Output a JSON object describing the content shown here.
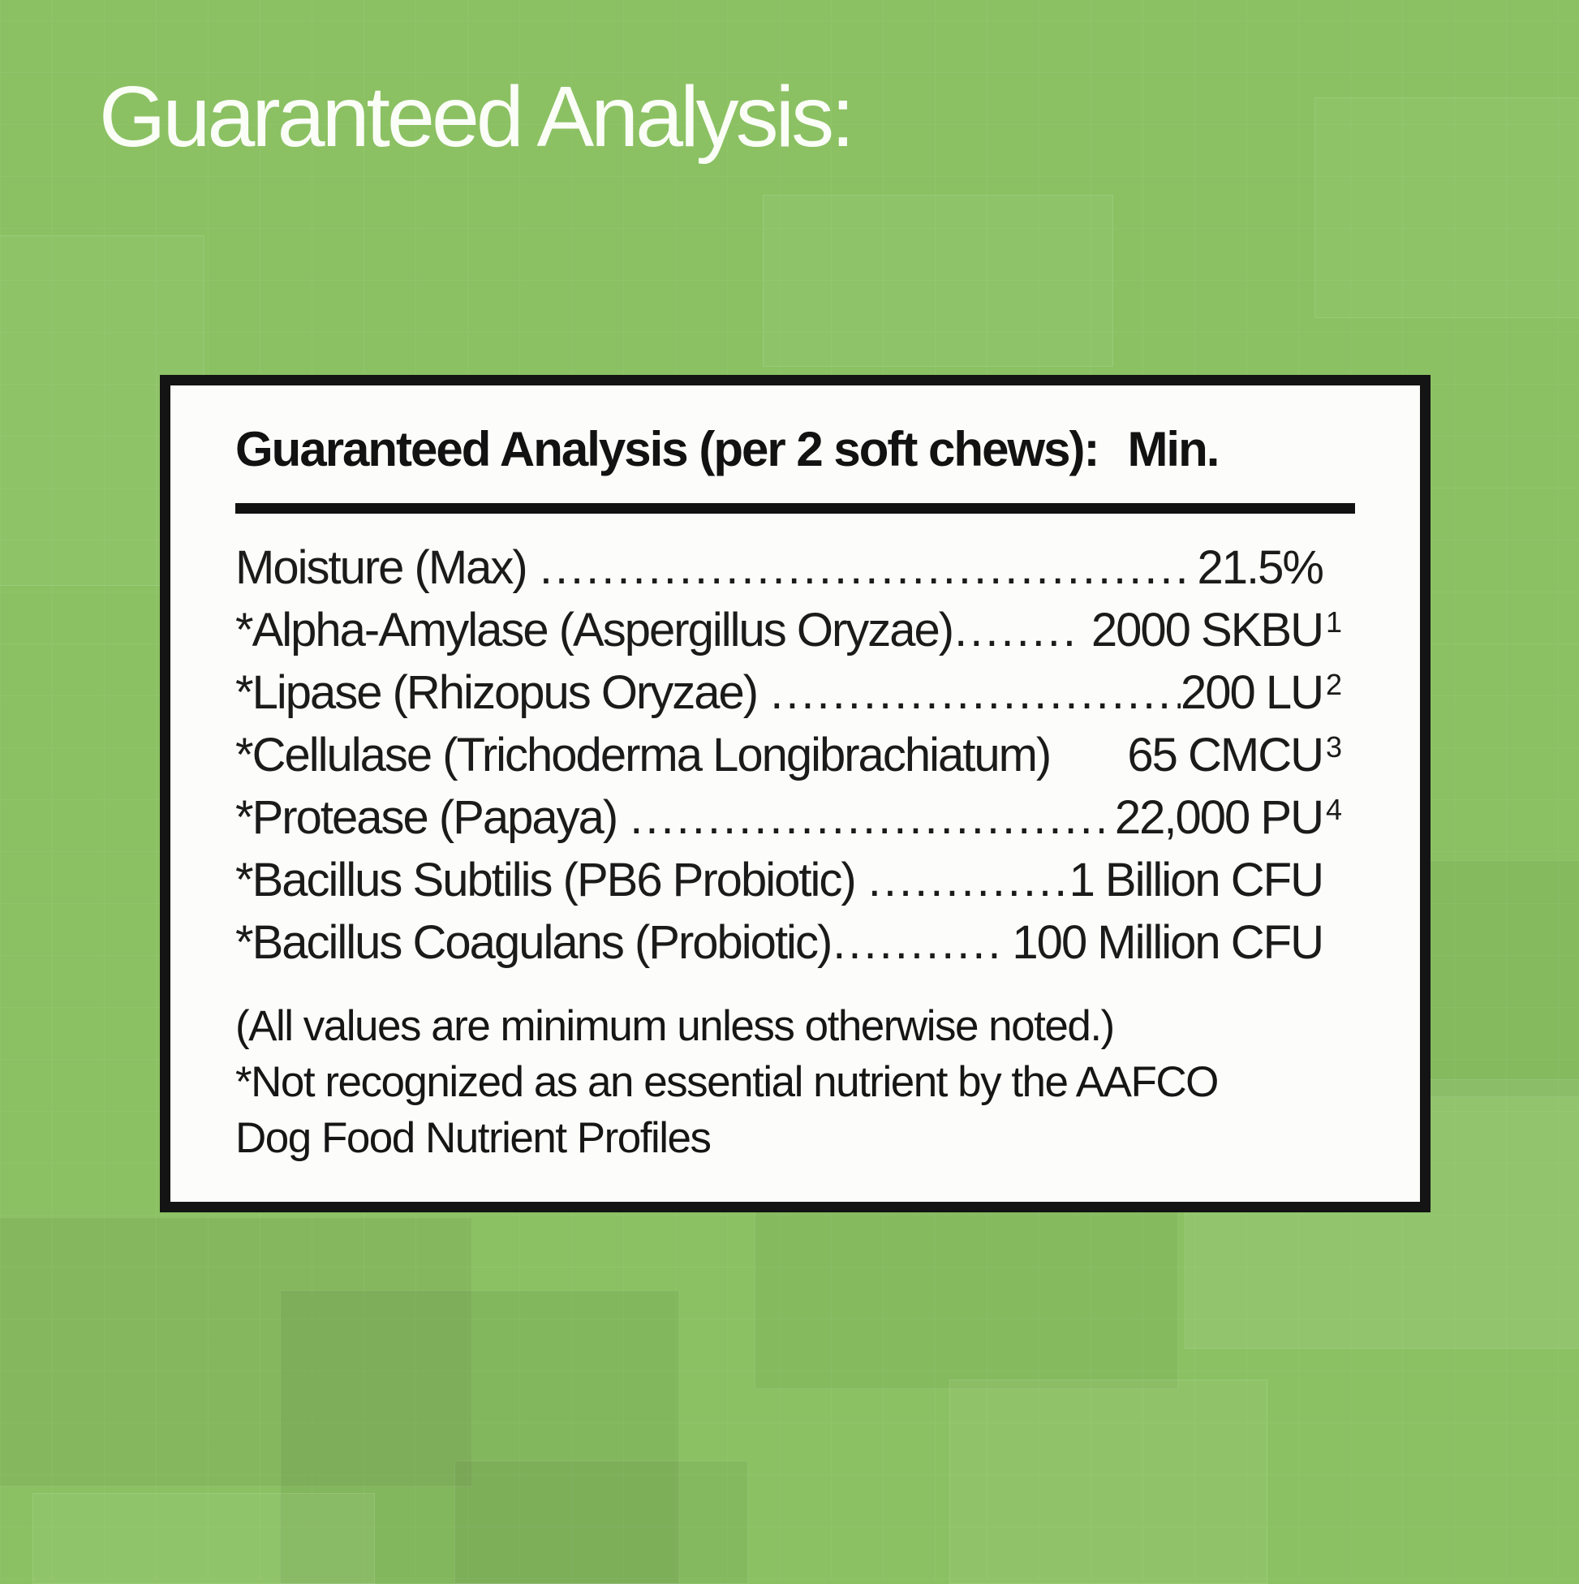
{
  "page": {
    "title": "Guaranteed Analysis:",
    "background_color": "#8bc163",
    "title_color": "#fbfdf7"
  },
  "panel": {
    "header": "Guaranteed Analysis (per 2 soft chews):",
    "min_header": "Min.",
    "background_color": "#fcfcfa",
    "border_color": "#141414",
    "text_color": "#1b1b1b",
    "rows": [
      {
        "label": "Moisture (Max) ",
        "dots": "..........................................................................................",
        "value": " 21.5%",
        "sup": ""
      },
      {
        "label": "*Alpha-Amylase (Aspergillus Oryzae)",
        "dots": "................",
        "value": " 2000 SKBU",
        "sup": "1"
      },
      {
        "label": "*Lipase (Rhizopus Oryzae) ",
        "dots": "...............................................",
        "value": "200 LU",
        "sup": "2"
      },
      {
        "label": "*Cellulase (Trichoderma Longibrachiatum)",
        "dots": "",
        "value": " 65 CMCU",
        "sup": "3"
      },
      {
        "label": "*Protease (Papaya) ",
        "dots": "...............................................",
        "value": " 22,000 PU",
        "sup": "4"
      },
      {
        "label": "*Bacillus Subtilis (PB6 Probiotic) ",
        "dots": "...........................",
        "value": "1 Billion CFU",
        "sup": ""
      },
      {
        "label": "*Bacillus Coagulans (Probiotic)",
        "dots": ".......................",
        "value": " 100 Million CFU",
        "sup": ""
      }
    ],
    "footnotes": [
      "(All values are minimum unless otherwise noted.)",
      "*Not recognized as an essential nutrient by the AAFCO",
      "Dog Food Nutrient Profiles"
    ]
  }
}
